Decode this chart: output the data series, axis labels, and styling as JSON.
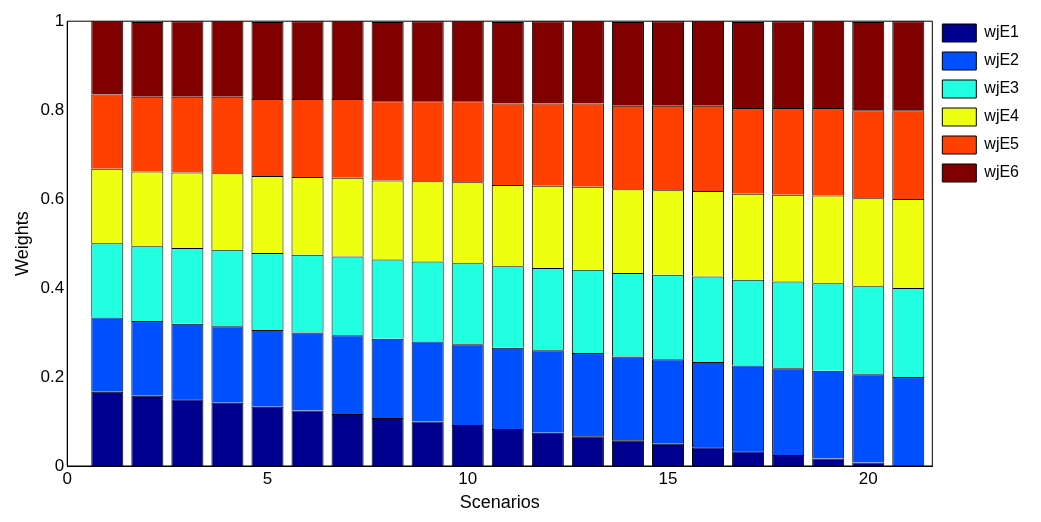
{
  "chart_data": {
    "type": "bar",
    "stacked": true,
    "xlabel": "Scenarios",
    "ylabel": "Weights",
    "x": [
      1,
      2,
      3,
      4,
      5,
      6,
      7,
      8,
      9,
      10,
      11,
      12,
      13,
      14,
      15,
      16,
      17,
      18,
      19,
      20,
      21
    ],
    "xlim": [
      0,
      21.6
    ],
    "xticks": [
      0,
      5,
      10,
      15,
      20
    ],
    "ylim": [
      0,
      1
    ],
    "yticks": [
      0,
      0.2,
      0.4,
      0.6,
      0.8,
      1
    ],
    "grid": false,
    "legend": "top right",
    "series": [
      {
        "name": "wjE1",
        "color": "#00008f",
        "values": [
          0.167,
          0.158,
          0.15,
          0.142,
          0.133,
          0.125,
          0.117,
          0.108,
          0.1,
          0.092,
          0.083,
          0.075,
          0.067,
          0.058,
          0.05,
          0.042,
          0.033,
          0.025,
          0.017,
          0.008,
          0.0
        ]
      },
      {
        "name": "wjE2",
        "color": "#0050ff",
        "values": [
          0.167,
          0.168,
          0.17,
          0.172,
          0.173,
          0.175,
          0.177,
          0.178,
          0.18,
          0.182,
          0.183,
          0.185,
          0.187,
          0.188,
          0.19,
          0.192,
          0.193,
          0.195,
          0.197,
          0.198,
          0.2
        ]
      },
      {
        "name": "wjE3",
        "color": "#20ffdf",
        "values": [
          0.167,
          0.168,
          0.17,
          0.172,
          0.173,
          0.175,
          0.177,
          0.178,
          0.18,
          0.182,
          0.183,
          0.185,
          0.187,
          0.188,
          0.19,
          0.192,
          0.193,
          0.195,
          0.197,
          0.198,
          0.2
        ]
      },
      {
        "name": "wjE4",
        "color": "#efff10",
        "values": [
          0.167,
          0.168,
          0.17,
          0.172,
          0.173,
          0.175,
          0.177,
          0.178,
          0.18,
          0.182,
          0.183,
          0.185,
          0.187,
          0.188,
          0.19,
          0.192,
          0.193,
          0.195,
          0.197,
          0.198,
          0.2
        ]
      },
      {
        "name": "wjE5",
        "color": "#ff4000",
        "values": [
          0.167,
          0.168,
          0.17,
          0.172,
          0.173,
          0.175,
          0.177,
          0.178,
          0.18,
          0.182,
          0.183,
          0.185,
          0.187,
          0.188,
          0.19,
          0.192,
          0.193,
          0.195,
          0.197,
          0.198,
          0.2
        ]
      },
      {
        "name": "wjE6",
        "color": "#800000",
        "values": [
          0.167,
          0.168,
          0.17,
          0.172,
          0.173,
          0.175,
          0.177,
          0.178,
          0.18,
          0.182,
          0.183,
          0.185,
          0.187,
          0.188,
          0.19,
          0.192,
          0.193,
          0.195,
          0.197,
          0.198,
          0.2
        ]
      }
    ]
  }
}
